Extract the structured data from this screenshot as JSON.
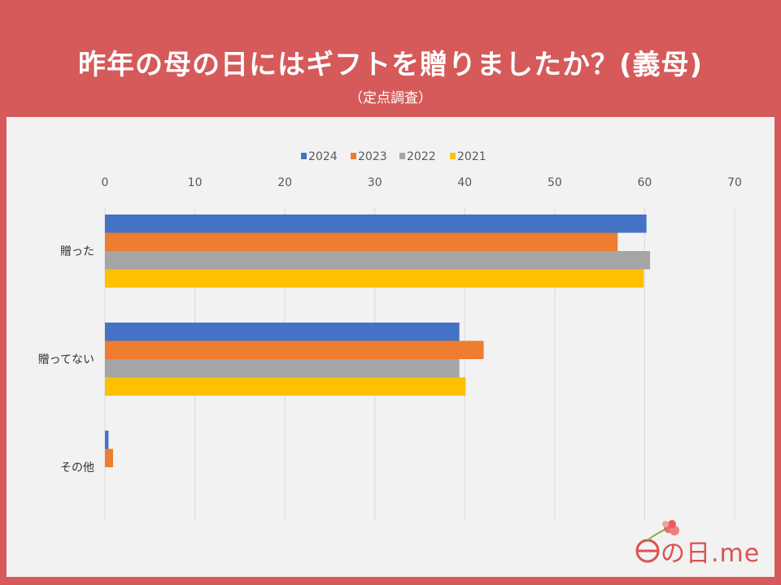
{
  "header": {
    "title": "昨年の母の日にはギフトを贈りましたか？(義母)",
    "subtitle": "（定点調査）"
  },
  "logo": {
    "text": "の日.me"
  },
  "colors": {
    "2024": "#4472c4",
    "2023": "#ed7d31",
    "2022": "#a5a5a5",
    "2021": "#ffc000",
    "grid": "#d9d9d9",
    "text": "#595959"
  },
  "chart_data": {
    "type": "bar",
    "orientation": "horizontal",
    "title": "",
    "xlim": [
      0,
      70
    ],
    "ticks": [
      0,
      10,
      20,
      30,
      40,
      50,
      60,
      70
    ],
    "tick_labels": [
      "0",
      "10",
      "20",
      "30",
      "40",
      "50",
      "60",
      "70"
    ],
    "legend_position": "top",
    "categories": [
      "贈った",
      "贈ってない",
      "その他"
    ],
    "series": [
      {
        "name": "2024",
        "values": [
          60.2,
          39.4,
          0.4
        ]
      },
      {
        "name": "2023",
        "values": [
          57.0,
          42.1,
          0.9
        ]
      },
      {
        "name": "2022",
        "values": [
          60.6,
          39.4,
          0.0
        ]
      },
      {
        "name": "2021",
        "values": [
          59.9,
          40.1,
          0.0
        ]
      }
    ]
  }
}
